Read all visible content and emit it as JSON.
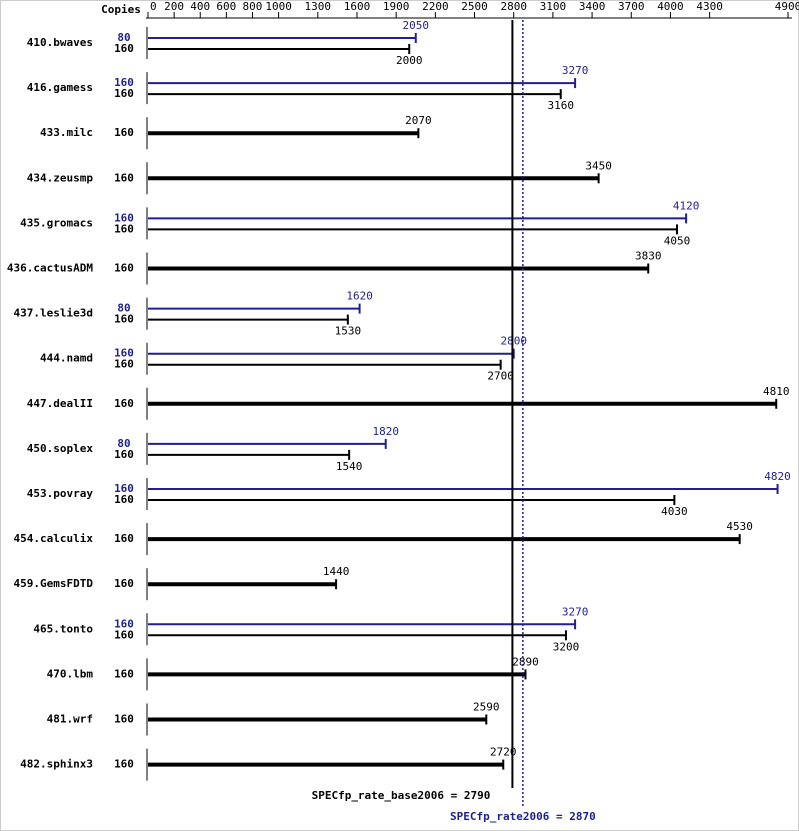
{
  "chart_data": {
    "type": "bar",
    "orientation": "horizontal",
    "copies_header": "Copies",
    "categories": [
      "410.bwaves",
      "416.gamess",
      "433.milc",
      "434.zeusmp",
      "435.gromacs",
      "436.cactusADM",
      "437.leslie3d",
      "444.namd",
      "447.dealII",
      "450.soplex",
      "453.povray",
      "454.calculix",
      "459.GemsFDTD",
      "465.tonto",
      "470.lbm",
      "481.wrf",
      "482.sphinx3"
    ],
    "series": [
      {
        "color": "#1f1f8f",
        "copies": [
          80,
          160,
          null,
          null,
          160,
          null,
          80,
          160,
          null,
          80,
          160,
          null,
          null,
          160,
          null,
          null,
          null
        ],
        "values": [
          2050,
          3270,
          null,
          null,
          4120,
          null,
          1620,
          2800,
          null,
          1820,
          4820,
          null,
          null,
          3270,
          null,
          null,
          null
        ]
      },
      {
        "color": "#000000",
        "copies": [
          160,
          160,
          160,
          160,
          160,
          160,
          160,
          160,
          160,
          160,
          160,
          160,
          160,
          160,
          160,
          160,
          160
        ],
        "values": [
          2000,
          3160,
          2070,
          3450,
          4050,
          3830,
          1530,
          2700,
          4810,
          1540,
          4030,
          4530,
          1440,
          3200,
          2890,
          2590,
          2720
        ]
      }
    ],
    "xlim": [
      0,
      4900
    ],
    "xticks": [
      0,
      200,
      400,
      600,
      800,
      1000,
      1300,
      1600,
      1900,
      2200,
      2500,
      2800,
      3100,
      3400,
      3700,
      4000,
      4300,
      4900
    ],
    "reference_lines": [
      {
        "label": "SPECfp_rate_base2006 =",
        "value": 2790,
        "color": "#000000",
        "style": "solid"
      },
      {
        "label": "SPECfp_rate2006 =",
        "value": 2870,
        "color": "#1f1f8f",
        "style": "dotted"
      }
    ]
  }
}
